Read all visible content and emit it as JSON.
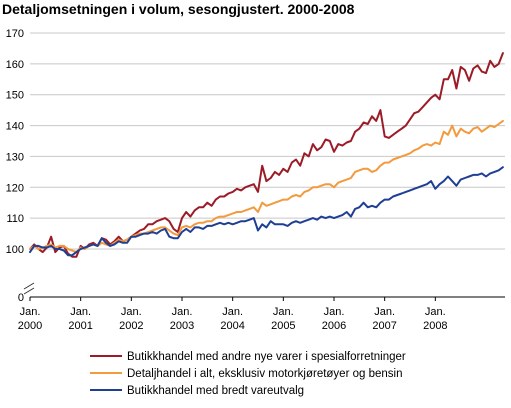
{
  "chart_data": {
    "type": "line",
    "title": "Detaljomsetningen i volum, sesongjustert. 2000-2008",
    "xlabel": "",
    "ylabel": "",
    "ylim": [
      95,
      170
    ],
    "y_axis_break": true,
    "grid": true,
    "yticks": [
      170,
      160,
      150,
      140,
      130,
      120,
      110,
      100,
      0
    ],
    "xticks": [
      {
        "line1": "Jan.",
        "line2": "2000"
      },
      {
        "line1": "Jan.",
        "line2": "2001"
      },
      {
        "line1": "Jan.",
        "line2": "2002"
      },
      {
        "line1": "Jan.",
        "line2": "2003"
      },
      {
        "line1": "Jan.",
        "line2": "2004"
      },
      {
        "line1": "Jan.",
        "line2": "2005"
      },
      {
        "line1": "Jan.",
        "line2": "2006"
      },
      {
        "line1": "Jan.",
        "line2": "2007"
      },
      {
        "line1": "Jan.",
        "line2": "2008"
      }
    ],
    "x_start": "2000-01",
    "x_end": "2008-05",
    "legend_position": "bottom",
    "series": [
      {
        "name": "Butikkhandel med andre nye varer i spesialforretninger",
        "color": "#9b1c26",
        "values": [
          100,
          101.5,
          100,
          99,
          100.5,
          104,
          99,
          100.5,
          101,
          98.5,
          97.5,
          97.5,
          101,
          100,
          101.5,
          102,
          101,
          103.5,
          103,
          101.5,
          102.5,
          104,
          102.5,
          103,
          104,
          105,
          106,
          106.5,
          108,
          108,
          109,
          109.5,
          110,
          109,
          106.5,
          105.5,
          110,
          112,
          110.5,
          112.5,
          113.5,
          113.5,
          115,
          114,
          116,
          117,
          117,
          118,
          118.5,
          119.5,
          119,
          120,
          120.5,
          121,
          118.5,
          127,
          122,
          123,
          125,
          124,
          126,
          125,
          128,
          129,
          127,
          131,
          130,
          134,
          132,
          133,
          135.5,
          135,
          131.5,
          134,
          133.5,
          134.5,
          135,
          138,
          139,
          141,
          140.5,
          143,
          141.5,
          145,
          136.5,
          136,
          137,
          138,
          139,
          140,
          142,
          144,
          144.5,
          146,
          147.5,
          149,
          150,
          148.5,
          155,
          155,
          158,
          152,
          159,
          158,
          154.5,
          158.5,
          159.5,
          157.5,
          157,
          161,
          159,
          160,
          163.5
        ]
      },
      {
        "name": "Detaljhandel i alt, eksklusiv motorkjøretøyer og bensin",
        "color": "#f29a3d",
        "values": [
          100,
          101,
          100,
          100.5,
          101,
          101.5,
          100.5,
          101,
          101,
          100,
          99.5,
          99,
          100.5,
          100,
          101,
          101.5,
          101,
          102,
          101.5,
          101,
          102,
          103,
          102.5,
          103,
          104,
          104.5,
          105,
          105,
          105.5,
          106,
          106.5,
          107,
          107,
          106,
          105,
          104.5,
          107,
          107.5,
          107,
          108,
          108.5,
          108.5,
          109,
          109,
          110,
          110.5,
          110.5,
          111,
          111.5,
          112,
          112,
          112.5,
          113,
          113.5,
          112,
          115,
          114,
          114.5,
          115,
          115.5,
          116,
          116,
          117,
          117.5,
          117,
          118.5,
          119,
          120,
          120,
          120.5,
          121,
          121,
          120,
          121.5,
          122,
          122.5,
          123,
          125,
          125.5,
          126,
          126,
          125,
          125.5,
          127,
          128,
          128,
          129,
          129.5,
          130,
          130.5,
          131,
          132,
          132.5,
          133.5,
          134,
          133.5,
          134.5,
          134,
          138,
          137,
          140,
          136.5,
          139,
          138,
          137.5,
          139,
          139.5,
          138,
          139,
          140,
          139.5,
          140.5,
          141.5
        ]
      },
      {
        "name": "Butikkhandel med bredt vareutvalg",
        "color": "#1f3f94",
        "values": [
          99,
          101,
          101,
          100.5,
          100.5,
          101,
          100,
          100,
          99.5,
          98,
          98,
          99,
          100,
          100.5,
          101,
          101.5,
          101,
          103.5,
          102,
          101,
          101.5,
          102.5,
          102,
          102,
          104,
          104,
          104.5,
          105,
          105,
          105.5,
          105,
          106,
          106.5,
          104,
          103.5,
          103.5,
          105.5,
          106.5,
          105.5,
          107,
          107,
          106.5,
          107.5,
          107.5,
          108,
          108.5,
          108,
          108.5,
          108,
          108.5,
          109,
          109,
          109.5,
          110,
          106,
          108,
          107,
          109,
          108,
          108,
          108,
          107.5,
          108.5,
          109,
          108.5,
          109,
          109.5,
          110,
          109.5,
          110.5,
          110,
          110.5,
          110,
          110.5,
          111,
          112,
          110.5,
          113,
          113.5,
          115,
          113.5,
          114,
          113.5,
          115,
          116,
          116,
          117,
          117.5,
          118,
          118.5,
          119,
          119.5,
          120,
          120.5,
          121,
          122,
          119.5,
          121,
          122,
          123.5,
          122,
          120.5,
          122.5,
          123,
          123.5,
          124,
          124,
          124.5,
          123.5,
          124.5,
          125,
          125.5,
          126.5
        ]
      }
    ]
  }
}
